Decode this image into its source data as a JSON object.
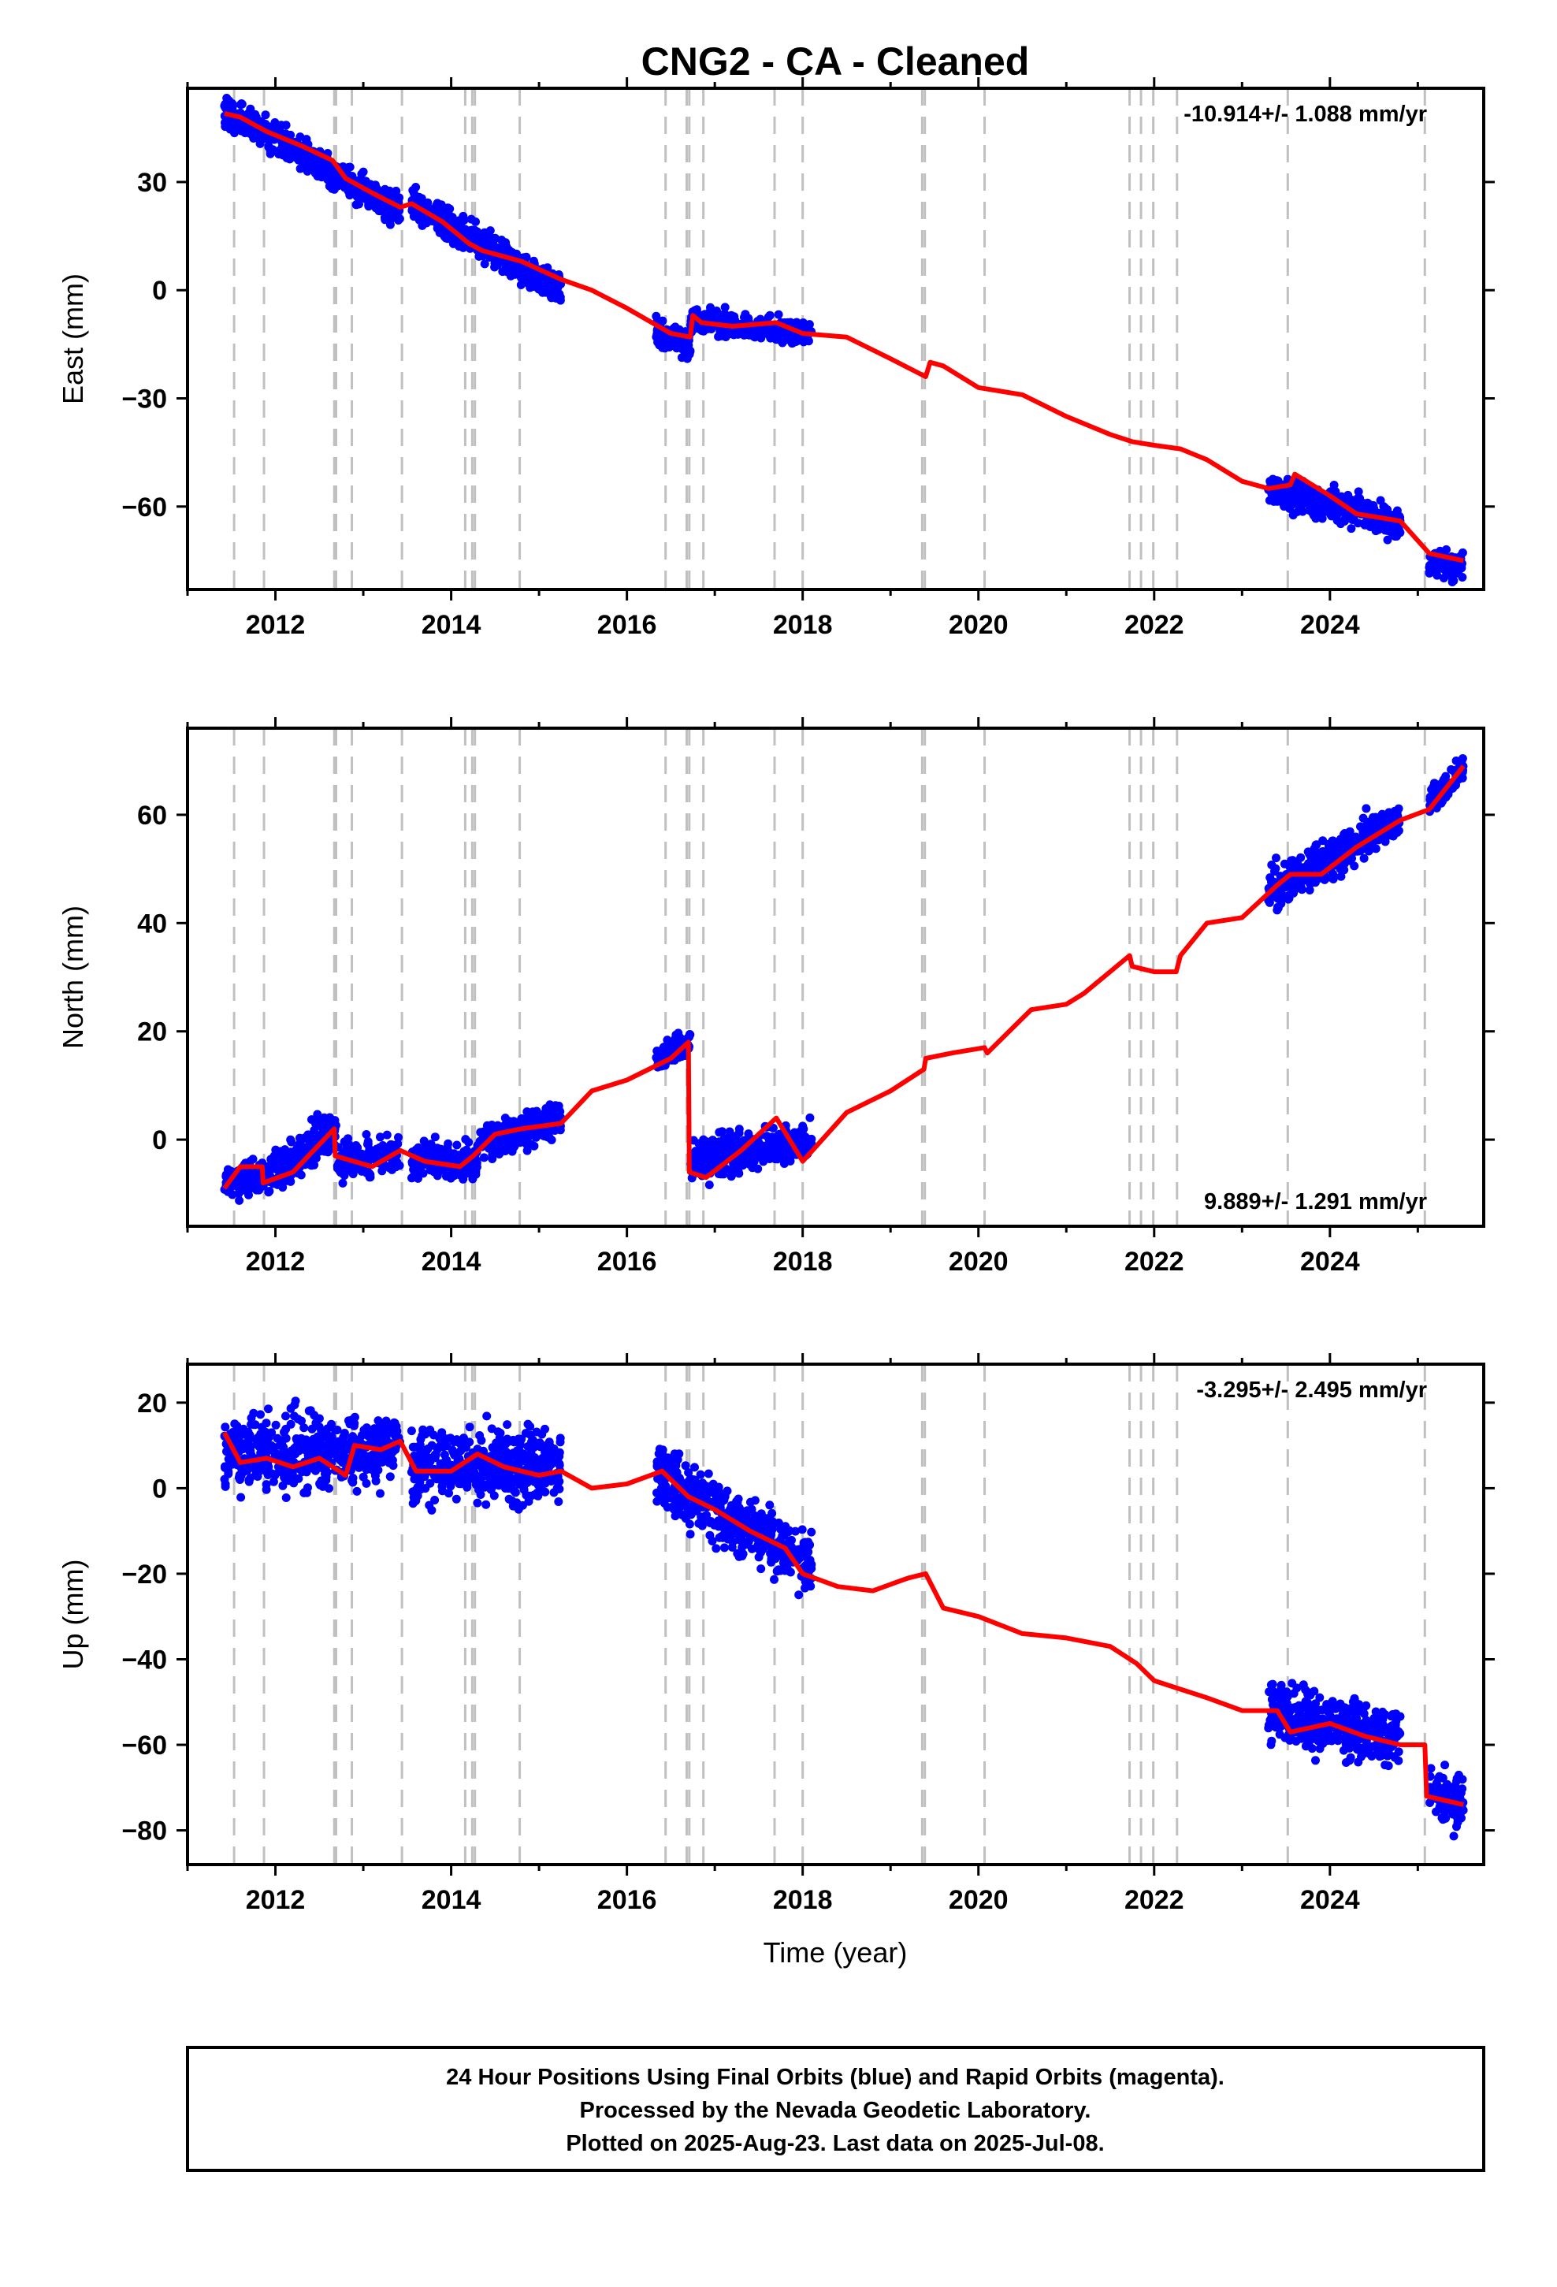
{
  "title": "CNG2  - CA - Cleaned",
  "colors": {
    "final_orbits": "#0000ff",
    "model": "#ff0000",
    "event_lines": "#c0c0c0",
    "axes": "#000000"
  },
  "footer": {
    "line1": "24 Hour Positions Using Final Orbits (blue) and Rapid Orbits (magenta).",
    "line2": "Processed by the Nevada Geodetic Laboratory.",
    "line3": "Plotted on 2025-Aug-23. Last data on 2025-Jul-08."
  },
  "chart_data": [
    {
      "type": "scatter",
      "component": "east",
      "ylabel": "East (mm)",
      "xlabel": "",
      "rate_text": "-10.914+/- 1.088 mm/yr",
      "rate_position": "top-right",
      "xlim": [
        2011.0,
        2025.75
      ],
      "ylim": [
        -83,
        56
      ],
      "xticks": [
        "2012",
        "2014",
        "2016",
        "2018",
        "2020",
        "2022",
        "2024"
      ],
      "yticks": [
        "30",
        "0",
        "−30",
        "−60"
      ],
      "ytick_values": [
        30,
        0,
        -30,
        -60
      ],
      "data_segments": [
        {
          "x": [
            2011.42,
            2013.42
          ],
          "y_start": 50,
          "y_end": 22,
          "spread": 3.5
        },
        {
          "x": [
            2013.55,
            2015.25
          ],
          "y_start": 24,
          "y_end": 0,
          "spread": 3.5
        },
        {
          "x": [
            2016.33,
            2016.72
          ],
          "y_start": -12,
          "y_end": -15,
          "spread": 3.5
        },
        {
          "x": [
            2016.72,
            2018.1
          ],
          "y_start": -8,
          "y_end": -12,
          "spread": 2.5
        },
        {
          "x": [
            2023.3,
            2024.8
          ],
          "y_start": -55,
          "y_end": -65,
          "spread": 3.5
        },
        {
          "x": [
            2025.13,
            2025.52
          ],
          "y_start": -75,
          "y_end": -77,
          "spread": 3.0
        }
      ],
      "model": {
        "x": [
          2011.42,
          2011.6,
          2011.9,
          2012.3,
          2012.65,
          2012.8,
          2013.1,
          2013.42,
          2013.55,
          2013.9,
          2014.2,
          2014.35,
          2014.8,
          2015.25,
          2015.6,
          2016.0,
          2016.5,
          2016.72,
          2016.75,
          2016.85,
          2017.2,
          2017.7,
          2018.0,
          2018.5,
          2019.0,
          2019.4,
          2019.45,
          2019.6,
          2020.0,
          2020.5,
          2021.0,
          2021.5,
          2021.75,
          2022.0,
          2022.3,
          2022.6,
          2023.0,
          2023.3,
          2023.55,
          2023.6,
          2024.0,
          2024.3,
          2024.8,
          2025.13,
          2025.52
        ],
        "y": [
          49,
          48,
          44,
          40,
          36,
          31,
          27,
          23,
          24,
          19,
          13,
          11,
          8,
          3,
          0,
          -5,
          -12,
          -13,
          -7,
          -9,
          -10,
          -9,
          -12,
          -13,
          -19,
          -24,
          -20,
          -21,
          -27,
          -29,
          -35,
          -40,
          -42,
          -43,
          -44,
          -47,
          -53,
          -55,
          -54,
          -51,
          -57,
          -62,
          -64,
          -73,
          -75
        ]
      },
      "event_lines": [
        2011.53,
        2011.87,
        2012.67,
        2012.69,
        2012.87,
        2013.44,
        2014.16,
        2014.24,
        2014.27,
        2014.78,
        2016.44,
        2016.68,
        2016.71,
        2016.87,
        2017.68,
        2018.0,
        2019.36,
        2019.39,
        2020.07,
        2021.72,
        2021.85,
        2021.99,
        2022.26,
        2023.52,
        2025.08
      ]
    },
    {
      "type": "scatter",
      "component": "north",
      "ylabel": "North (mm)",
      "xlabel": "",
      "rate_text": "9.889+/- 1.291 mm/yr",
      "rate_position": "bottom-right",
      "xlim": [
        2011.0,
        2025.75
      ],
      "ylim": [
        -16,
        76
      ],
      "xticks": [
        "2012",
        "2014",
        "2016",
        "2018",
        "2020",
        "2022",
        "2024"
      ],
      "yticks": [
        "60",
        "40",
        "20",
        "0"
      ],
      "ytick_values": [
        60,
        40,
        20,
        0
      ],
      "data_segments": [
        {
          "x": [
            2011.42,
            2011.9
          ],
          "y_start": -8,
          "y_end": -6,
          "spread": 2.5
        },
        {
          "x": [
            2011.9,
            2012.7
          ],
          "y_start": -7,
          "y_end": 2,
          "spread": 3.0
        },
        {
          "x": [
            2012.7,
            2013.42
          ],
          "y_start": -4,
          "y_end": -3,
          "spread": 3.0
        },
        {
          "x": [
            2013.55,
            2014.3
          ],
          "y_start": -4,
          "y_end": -4,
          "spread": 2.5
        },
        {
          "x": [
            2014.3,
            2015.25
          ],
          "y_start": -1,
          "y_end": 4,
          "spread": 2.5
        },
        {
          "x": [
            2016.33,
            2016.72
          ],
          "y_start": 15,
          "y_end": 18,
          "spread": 2.0
        },
        {
          "x": [
            2016.72,
            2018.1
          ],
          "y_start": -4,
          "y_end": 0,
          "spread": 3.0
        },
        {
          "x": [
            2023.3,
            2024.8
          ],
          "y_start": 46,
          "y_end": 59,
          "spread": 3.0
        },
        {
          "x": [
            2025.13,
            2025.52
          ],
          "y_start": 62,
          "y_end": 69,
          "spread": 2.0
        }
      ],
      "model": {
        "x": [
          2011.42,
          2011.6,
          2011.85,
          2011.86,
          2012.2,
          2012.67,
          2012.68,
          2013.1,
          2013.42,
          2013.7,
          2014.1,
          2014.25,
          2014.5,
          2014.8,
          2015.25,
          2015.6,
          2016.0,
          2016.5,
          2016.7,
          2016.71,
          2016.9,
          2017.3,
          2017.7,
          2018.0,
          2018.5,
          2019.0,
          2019.38,
          2019.4,
          2019.7,
          2020.07,
          2020.1,
          2020.6,
          2021.0,
          2021.2,
          2021.72,
          2021.75,
          2022.0,
          2022.25,
          2022.3,
          2022.6,
          2023.0,
          2023.4,
          2023.55,
          2023.9,
          2024.3,
          2024.8,
          2025.13,
          2025.52
        ],
        "y": [
          -9,
          -5,
          -5,
          -8,
          -6,
          2,
          -3,
          -5,
          -2,
          -4,
          -5,
          -3,
          1,
          2,
          3,
          9,
          11,
          15,
          18,
          -6,
          -7,
          -2,
          4,
          -4,
          5,
          9,
          13,
          15,
          16,
          17,
          16,
          24,
          25,
          27,
          34,
          32,
          31,
          31,
          34,
          40,
          41,
          47,
          49,
          49,
          54,
          59,
          61,
          69
        ]
      },
      "event_lines": [
        2011.53,
        2011.87,
        2012.67,
        2012.69,
        2012.87,
        2013.44,
        2014.16,
        2014.24,
        2014.27,
        2014.78,
        2016.44,
        2016.68,
        2016.71,
        2016.87,
        2017.68,
        2018.0,
        2019.36,
        2019.39,
        2020.07,
        2021.72,
        2021.85,
        2021.99,
        2022.26,
        2023.52,
        2025.08
      ]
    },
    {
      "type": "scatter",
      "component": "up",
      "ylabel": "Up (mm)",
      "xlabel": "Time (year)",
      "rate_text": "-3.295+/- 2.495 mm/yr",
      "rate_position": "top-right",
      "xlim": [
        2011.0,
        2025.75
      ],
      "ylim": [
        -88,
        29
      ],
      "xticks": [
        "2012",
        "2014",
        "2016",
        "2018",
        "2020",
        "2022",
        "2024"
      ],
      "yticks": [
        "20",
        "0",
        "−20",
        "−40",
        "−60",
        "−80"
      ],
      "ytick_values": [
        20,
        0,
        -20,
        -40,
        -60,
        -80
      ],
      "data_segments": [
        {
          "x": [
            2011.42,
            2013.42
          ],
          "y_start": 8,
          "y_end": 9,
          "spread": 7.0
        },
        {
          "x": [
            2013.55,
            2015.25
          ],
          "y_start": 6,
          "y_end": 5,
          "spread": 7.0
        },
        {
          "x": [
            2016.33,
            2018.1
          ],
          "y_start": 3,
          "y_end": -18,
          "spread": 6.0
        },
        {
          "x": [
            2023.3,
            2024.8
          ],
          "y_start": -52,
          "y_end": -58,
          "spread": 5.5
        },
        {
          "x": [
            2025.13,
            2025.52
          ],
          "y_start": -72,
          "y_end": -74,
          "spread": 5.0
        }
      ],
      "model": {
        "x": [
          2011.42,
          2011.6,
          2011.9,
          2012.2,
          2012.5,
          2012.8,
          2012.9,
          2013.2,
          2013.42,
          2013.6,
          2014.0,
          2014.3,
          2014.6,
          2015.0,
          2015.25,
          2015.6,
          2016.0,
          2016.4,
          2016.7,
          2017.0,
          2017.4,
          2017.8,
          2018.0,
          2018.4,
          2018.8,
          2019.2,
          2019.4,
          2019.6,
          2020.0,
          2020.5,
          2021.0,
          2021.5,
          2021.8,
          2022.0,
          2022.3,
          2022.6,
          2023.0,
          2023.4,
          2023.55,
          2024.0,
          2024.4,
          2024.8,
          2025.08,
          2025.1,
          2025.52
        ],
        "y": [
          13,
          6,
          7,
          5,
          7,
          3,
          10,
          9,
          11,
          4,
          4,
          8,
          5,
          3,
          4,
          0,
          1,
          4,
          -2,
          -5,
          -10,
          -14,
          -20,
          -23,
          -24,
          -21,
          -20,
          -28,
          -30,
          -34,
          -35,
          -37,
          -41,
          -45,
          -47,
          -49,
          -52,
          -52,
          -57,
          -55,
          -58,
          -60,
          -60,
          -72,
          -74
        ]
      },
      "event_lines": [
        2011.53,
        2011.87,
        2012.67,
        2012.69,
        2012.87,
        2013.44,
        2014.16,
        2014.24,
        2014.27,
        2014.78,
        2016.44,
        2016.68,
        2016.71,
        2016.87,
        2017.68,
        2018.0,
        2019.36,
        2019.39,
        2020.07,
        2021.72,
        2021.85,
        2021.99,
        2022.26,
        2023.52,
        2025.08
      ]
    }
  ]
}
